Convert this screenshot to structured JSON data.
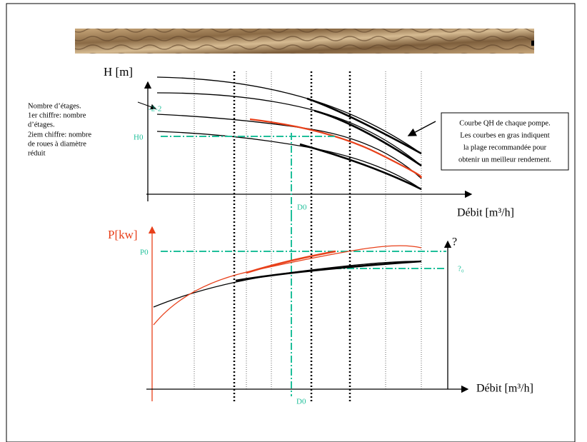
{
  "top_chart": {
    "y_label": "H [m]",
    "stage_code": "-2-2",
    "h0": "H0",
    "d0": "D0",
    "x_label": "Débit [m³/h]"
  },
  "left_note": {
    "lines": [
      "Nombre d’étages.",
      "1er chiffre: nombre",
      "d’étages.",
      "2iem chiffre: nombre",
      "de roues à diamètre",
      "réduit"
    ]
  },
  "right_note": {
    "lines": [
      "Courbe QH de chaque pompe.",
      "Les courbes en gras indiquent",
      "la plage recommandée pour",
      "obtenir un meilleur rendement."
    ]
  },
  "bottom_chart": {
    "y_label": "P[kw]",
    "p0": "P0",
    "y2_label": "?",
    "eta0": "?₀",
    "d0": "D0",
    "x_label": "Débit [m³/h]"
  }
}
